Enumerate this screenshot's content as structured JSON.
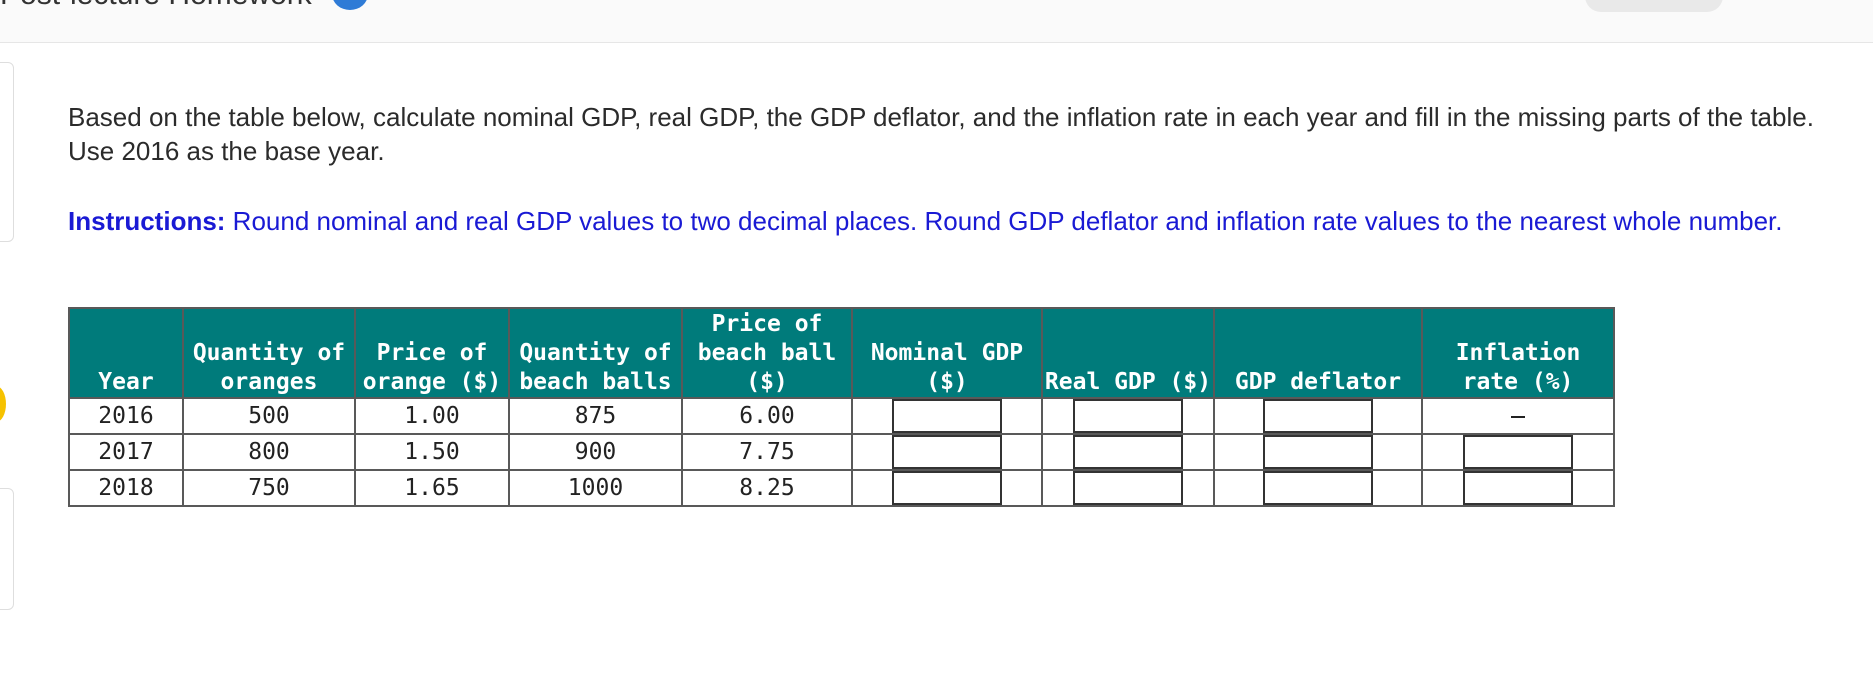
{
  "header": {
    "title": "Post-lecture Homework"
  },
  "question": {
    "text": "Based on the table below, calculate nominal GDP, real GDP, the GDP deflator, and the inflation rate in each year and fill in the missing parts of the table. Use 2016 as the base year."
  },
  "instructions": {
    "label": "Instructions:",
    "text": " Round nominal and real GDP values to two decimal places. Round GDP deflator and inflation rate values to the nearest whole number."
  },
  "table": {
    "headers": {
      "year": "Year",
      "qty_oranges": "Quantity of oranges",
      "price_orange": "Price of orange ($)",
      "qty_beach_balls": "Quantity of beach balls",
      "price_beach_ball": "Price of beach ball ($)",
      "nominal_gdp": "Nominal GDP ($)",
      "real_gdp": "Real GDP ($)",
      "gdp_deflator": "GDP deflator",
      "inflation_rate": "Inflation rate (%)"
    },
    "rows": [
      {
        "year": "2016",
        "qty_oranges": "500",
        "price_orange": "1.00",
        "qty_beach_balls": "875",
        "price_beach_ball": "6.00",
        "nominal_gdp": "",
        "real_gdp": "",
        "gdp_deflator": "",
        "inflation_rate": ""
      },
      {
        "year": "2017",
        "qty_oranges": "800",
        "price_orange": "1.50",
        "qty_beach_balls": "900",
        "price_beach_ball": "7.75",
        "nominal_gdp": "",
        "real_gdp": "",
        "gdp_deflator": "",
        "inflation_rate": ""
      },
      {
        "year": "2018",
        "qty_oranges": "750",
        "price_orange": "1.65",
        "qty_beach_balls": "1000",
        "price_beach_ball": "8.25",
        "nominal_gdp": "",
        "real_gdp": "",
        "gdp_deflator": "",
        "inflation_rate": ""
      }
    ]
  },
  "colors": {
    "header_bg": "#007b7b",
    "instructions_text": "#1a1ad4",
    "help_icon": "#2f7bd6"
  },
  "icons": {
    "help": "help-circle-icon"
  }
}
